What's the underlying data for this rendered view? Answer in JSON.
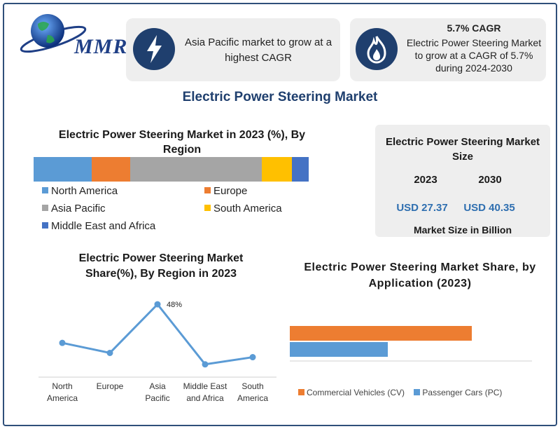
{
  "logo": {
    "text": "MMR"
  },
  "cards": {
    "asia": {
      "icon": "lightning-icon",
      "text": "Asia Pacific market to grow at a highest CAGR"
    },
    "cagr": {
      "icon": "flame-icon",
      "title": "5.7% CAGR",
      "text": "Electric Power Steering Market to grow at a CAGR of 5.7% during 2024-2030"
    }
  },
  "main_title": "Electric Power Steering Market",
  "size_card": {
    "title": "Electric Power Steering Market Size",
    "year_a": "2023",
    "year_b": "2030",
    "value_a": "USD 27.37",
    "value_b": "USD 40.35",
    "footer": "Market Size in Billion"
  },
  "colors": {
    "north_america": "#5b9bd5",
    "europe": "#ed7d31",
    "asia_pacific": "#a5a5a5",
    "south_america": "#ffc000",
    "mea": "#4472c4",
    "line": "#5b9bd5",
    "commercial": "#ed7d31",
    "passenger": "#5b9bd5"
  },
  "chart_data": [
    {
      "type": "bar",
      "stacked": true,
      "orientation": "horizontal",
      "title": "Electric Power Steering Market in 2023 (%), By Region",
      "series": [
        {
          "name": "North America",
          "value": 21
        },
        {
          "name": "Europe",
          "value": 14
        },
        {
          "name": "Asia Pacific",
          "value": 48
        },
        {
          "name": "South America",
          "value": 11
        },
        {
          "name": "Middle East and Africa",
          "value": 6
        }
      ],
      "legend": [
        "North America",
        "Europe",
        "Asia Pacific",
        "South America",
        "Middle East and Africa"
      ],
      "legend_placement": "bottom"
    },
    {
      "type": "line",
      "title": "Electric Power Steering Market Share(%), By Region in 2023",
      "categories": [
        "North America",
        "Europe",
        "Asia Pacific",
        "Middle East and Africa",
        "South America"
      ],
      "values": [
        21,
        14,
        48,
        6,
        11
      ],
      "data_labels": {
        "Asia Pacific": "48%"
      },
      "ylim": [
        0,
        50
      ],
      "grid": false
    },
    {
      "type": "bar",
      "orientation": "horizontal",
      "title": "Electric Power Steering Market Share, by Application (2023)",
      "categories": [
        "Commercial Vehicles (CV)",
        "Passenger Cars (PC)"
      ],
      "values": [
        65,
        35
      ],
      "legend_placement": "bottom"
    }
  ]
}
